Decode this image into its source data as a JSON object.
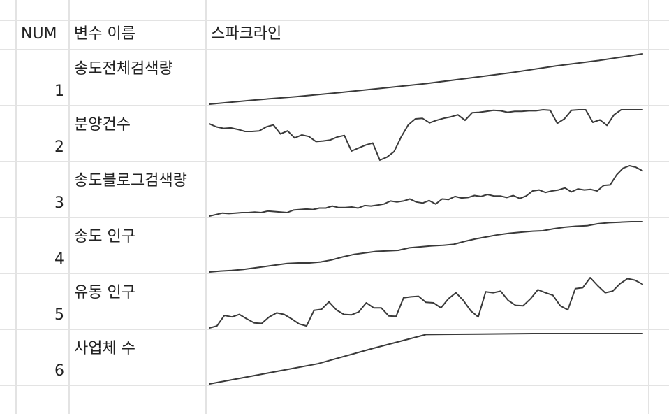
{
  "header": {
    "num": "NUM",
    "name": "변수 이름",
    "sparkline": "스파크라인"
  },
  "rows": [
    {
      "num": "1",
      "name": "송도전체검색량",
      "series": [
        0.0,
        0.08,
        0.15,
        0.23,
        0.32,
        0.41,
        0.52,
        0.63,
        0.76,
        0.87,
        1.0
      ]
    },
    {
      "num": "2",
      "name": "분양건수",
      "series": [
        0.72,
        0.66,
        0.63,
        0.64,
        0.61,
        0.57,
        0.57,
        0.58,
        0.66,
        0.7,
        0.52,
        0.58,
        0.44,
        0.5,
        0.47,
        0.37,
        0.38,
        0.4,
        0.46,
        0.49,
        0.18,
        0.24,
        0.3,
        0.34,
        0.0,
        0.06,
        0.17,
        0.46,
        0.7,
        0.82,
        0.83,
        0.74,
        0.79,
        0.83,
        0.86,
        0.9,
        0.79,
        0.94,
        0.95,
        0.97,
        0.99,
        0.98,
        0.95,
        0.97,
        0.97,
        0.98,
        0.98,
        1.0,
        0.99,
        0.73,
        0.82,
        0.99,
        1.0,
        1.0,
        0.75,
        0.8,
        0.69,
        0.9,
        1.0,
        1.0,
        1.0,
        1.0
      ]
    },
    {
      "num": "3",
      "name": "송도블로그검색량",
      "series": [
        0.0,
        0.03,
        0.06,
        0.05,
        0.06,
        0.07,
        0.07,
        0.08,
        0.07,
        0.1,
        0.09,
        0.08,
        0.07,
        0.12,
        0.13,
        0.14,
        0.13,
        0.16,
        0.16,
        0.2,
        0.17,
        0.17,
        0.18,
        0.16,
        0.21,
        0.2,
        0.22,
        0.24,
        0.3,
        0.28,
        0.3,
        0.34,
        0.28,
        0.26,
        0.31,
        0.24,
        0.34,
        0.33,
        0.39,
        0.36,
        0.37,
        0.41,
        0.39,
        0.43,
        0.4,
        0.4,
        0.37,
        0.41,
        0.35,
        0.4,
        0.5,
        0.52,
        0.47,
        0.5,
        0.52,
        0.56,
        0.48,
        0.54,
        0.52,
        0.53,
        0.5,
        0.61,
        0.62,
        0.82,
        0.95,
        1.0,
        0.97,
        0.9
      ]
    },
    {
      "num": "4",
      "name": "송도 인구",
      "series": [
        0.0,
        0.02,
        0.03,
        0.05,
        0.08,
        0.11,
        0.14,
        0.17,
        0.18,
        0.18,
        0.2,
        0.24,
        0.3,
        0.35,
        0.38,
        0.41,
        0.42,
        0.43,
        0.48,
        0.5,
        0.52,
        0.53,
        0.55,
        0.61,
        0.66,
        0.7,
        0.74,
        0.77,
        0.79,
        0.81,
        0.82,
        0.86,
        0.89,
        0.91,
        0.92,
        0.96,
        0.98,
        0.99,
        1.0,
        1.0
      ]
    },
    {
      "num": "5",
      "name": "유동 인구",
      "series": [
        0.0,
        0.04,
        0.25,
        0.22,
        0.27,
        0.18,
        0.1,
        0.09,
        0.22,
        0.3,
        0.27,
        0.18,
        0.08,
        0.04,
        0.35,
        0.37,
        0.52,
        0.36,
        0.27,
        0.26,
        0.32,
        0.5,
        0.4,
        0.4,
        0.24,
        0.23,
        0.6,
        0.62,
        0.63,
        0.51,
        0.5,
        0.4,
        0.58,
        0.7,
        0.55,
        0.34,
        0.22,
        0.72,
        0.7,
        0.73,
        0.55,
        0.45,
        0.44,
        0.58,
        0.76,
        0.7,
        0.65,
        0.44,
        0.36,
        0.78,
        0.8,
        1.0,
        0.84,
        0.7,
        0.73,
        0.88,
        0.98,
        0.95,
        0.87
      ]
    },
    {
      "num": "6",
      "name": "사업체 수",
      "series": [
        0.0,
        0.2,
        0.4,
        0.7,
        0.98,
        0.99,
        1.0,
        1.0,
        1.0
      ]
    }
  ]
}
